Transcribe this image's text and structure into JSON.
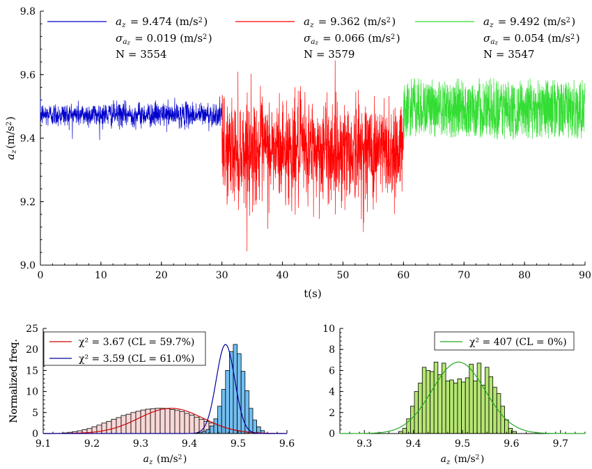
{
  "chart_data": [
    {
      "type": "line",
      "xlabel": "t(s)",
      "ylabel": "a_z(m/s^2)",
      "xlim": [
        0,
        90
      ],
      "ylim": [
        9.0,
        9.8
      ],
      "xticks": [
        "0",
        "10",
        "20",
        "30",
        "40",
        "50",
        "60",
        "70",
        "80",
        "90"
      ],
      "yticks": [
        "9.0",
        "9.2",
        "9.4",
        "9.6",
        "9.8"
      ],
      "grid": false,
      "legend_position": "top",
      "series": [
        {
          "t_range": [
            0,
            30
          ],
          "mean": 9.474,
          "sigma": 0.019,
          "N": 3554,
          "color": "#0000cc",
          "legend": {
            "mean": "a_z = 9.474 (m/s^2)",
            "sigma": "σ_az = 0.019 (m/s^2)",
            "n": "N = 3554"
          }
        },
        {
          "t_range": [
            30,
            60
          ],
          "mean": 9.362,
          "sigma": 0.066,
          "N": 3579,
          "color": "#ff0000",
          "legend": {
            "mean": "a_z = 9.362 (m/s^2)",
            "sigma": "σ_az = 0.066 (m/s^2)",
            "n": "N = 3579"
          }
        },
        {
          "t_range": [
            60,
            90
          ],
          "mean": 9.492,
          "sigma": 0.054,
          "N": 3547,
          "color": "#33dd33",
          "legend": {
            "mean": "a_z = 9.492 (m/s^2)",
            "sigma": "σ_az = 0.054 (m/s^2)",
            "n": "N = 3547"
          }
        }
      ]
    },
    {
      "type": "bar",
      "xlabel": "a_z (m/s^2)",
      "ylabel": "Normalized freq.",
      "xlim": [
        9.1,
        9.6
      ],
      "ylim": [
        0,
        25
      ],
      "xticks": [
        "9.1",
        "9.2",
        "9.3",
        "9.4",
        "9.5",
        "9.6"
      ],
      "yticks": [
        "0",
        "5",
        "10",
        "15",
        "20",
        "25"
      ],
      "legend_position": "top-left",
      "series": [
        {
          "legend": "χ² = 3.67   (CL = 59.7%)",
          "fit_color": "#cc0000",
          "bar_color": "#f7d0d0",
          "fit_mean": 9.362,
          "fit_sigma": 0.066,
          "bin_start": 9.14,
          "bin_width": 0.01,
          "values": [
            0.15,
            0.3,
            0.45,
            0.65,
            0.9,
            1.2,
            1.6,
            2.0,
            2.5,
            2.9,
            3.4,
            3.8,
            4.3,
            4.6,
            5.0,
            5.3,
            5.6,
            5.8,
            5.9,
            6.0,
            6.0,
            5.9,
            5.7,
            5.5,
            5.2,
            4.8,
            4.4,
            3.9,
            3.4,
            2.9,
            2.5,
            2.0,
            1.6,
            1.3,
            1.0,
            0.7,
            0.5,
            0.3,
            0.2,
            0.1
          ]
        },
        {
          "legend": "χ² = 3.59   (CL = 61.0%)",
          "fit_color": "#000099",
          "bar_color": "#5ab4ee",
          "fit_mean": 9.474,
          "fit_sigma": 0.019,
          "bin_start": 9.41,
          "bin_width": 0.008,
          "values": [
            0.1,
            0.2,
            0.5,
            0.9,
            1.8,
            3.5,
            6.5,
            10.5,
            15.0,
            19.5,
            21.2,
            19.0,
            14.8,
            10.2,
            6.0,
            3.2,
            1.6,
            0.7
          ]
        }
      ]
    },
    {
      "type": "bar",
      "xlabel": "a_z (m/s^2)",
      "ylabel": "Normalized freq.",
      "xlim": [
        9.25,
        9.75
      ],
      "ylim": [
        0,
        10
      ],
      "xticks": [
        "9.3",
        "9.4",
        "9.5",
        "9.6",
        "9.7"
      ],
      "yticks": [
        "0",
        "2",
        "4",
        "6",
        "8",
        "10"
      ],
      "legend_position": "top-right",
      "series": [
        {
          "legend": "χ² = 407   (CL = 0%)",
          "fit_color": "#22aa22",
          "bar_color": "#a8e05a",
          "fit_mean": 9.492,
          "fit_sigma": 0.054,
          "bin_start": 9.37,
          "bin_width": 0.008,
          "values": [
            0.2,
            0.5,
            1.4,
            2.6,
            4.0,
            4.8,
            6.3,
            6.0,
            5.9,
            6.8,
            5.6,
            6.7,
            5.0,
            5.1,
            4.8,
            5.2,
            4.9,
            5.3,
            6.6,
            5.0,
            6.7,
            4.6,
            6.3,
            5.4,
            4.4,
            3.8,
            2.6,
            1.3,
            0.5,
            0.2
          ]
        }
      ]
    }
  ]
}
